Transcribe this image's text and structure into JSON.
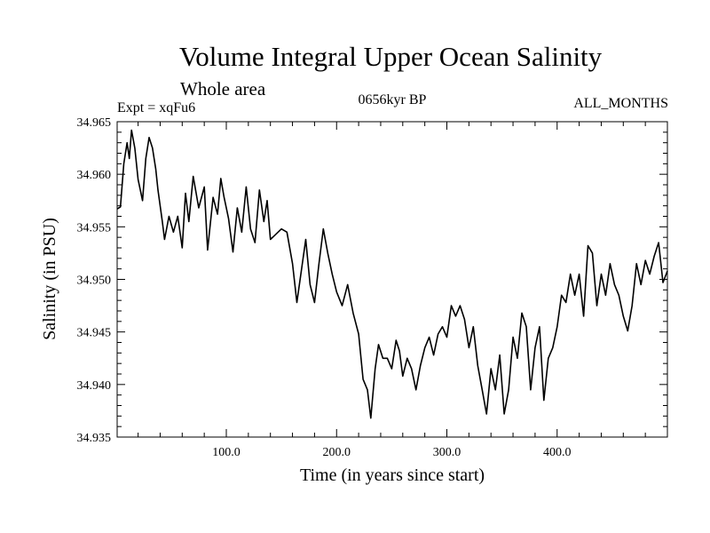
{
  "chart_data": {
    "type": "line",
    "title": "Volume Integral Upper Ocean Salinity",
    "subtitle": "Whole area",
    "experiment": "Expt = xqFu6",
    "period": "0656kyr BP",
    "months": "ALL_MONTHS",
    "xlabel": "Time (in years since start)",
    "ylabel": "Salinity (in PSU)",
    "xlim": [
      1,
      500
    ],
    "ylim": [
      34.935,
      34.965
    ],
    "xticks": [
      100,
      200,
      300,
      400
    ],
    "xtick_labels": [
      "100.0",
      "200.0",
      "300.0",
      "400.0"
    ],
    "yticks": [
      34.935,
      34.94,
      34.945,
      34.95,
      34.955,
      34.96,
      34.965
    ],
    "ytick_labels": [
      "34.935",
      "34.940",
      "34.945",
      "34.950",
      "34.955",
      "34.960",
      "34.965"
    ],
    "series": [
      {
        "name": "Salinity",
        "x": [
          1,
          4,
          7,
          10,
          12,
          14,
          17,
          20,
          24,
          27,
          30,
          33,
          36,
          38,
          42,
          44,
          48,
          52,
          56,
          60,
          63,
          66,
          70,
          75,
          80,
          83,
          88,
          92,
          95,
          98,
          102,
          106,
          110,
          114,
          118,
          122,
          126,
          130,
          134,
          137,
          140,
          144,
          150,
          155,
          160,
          164,
          168,
          172,
          176,
          180,
          184,
          188,
          192,
          196,
          200,
          205,
          210,
          215,
          220,
          224,
          228,
          231,
          235,
          238,
          242,
          246,
          250,
          254,
          257,
          260,
          264,
          268,
          272,
          276,
          280,
          284,
          288,
          292,
          296,
          300,
          304,
          308,
          312,
          316,
          320,
          324,
          328,
          332,
          336,
          340,
          344,
          348,
          352,
          356,
          360,
          364,
          368,
          372,
          376,
          380,
          384,
          388,
          392,
          396,
          400,
          404,
          408,
          412,
          416,
          420,
          424,
          428,
          432,
          436,
          440,
          444,
          448,
          452,
          456,
          460,
          464,
          468,
          472,
          476,
          480,
          484,
          488,
          492,
          496,
          500
        ],
        "values": [
          34.9567,
          34.9569,
          34.961,
          34.963,
          34.9615,
          34.9642,
          34.9625,
          34.9595,
          34.9575,
          34.9615,
          34.9635,
          34.9625,
          34.9605,
          34.9585,
          34.9555,
          34.9538,
          34.956,
          34.9545,
          34.956,
          34.953,
          34.9582,
          34.9555,
          34.9598,
          34.9568,
          34.9588,
          34.9528,
          34.9578,
          34.9562,
          34.9596,
          34.9578,
          34.9558,
          34.9526,
          34.9568,
          34.9545,
          34.9588,
          34.9548,
          34.9535,
          34.9585,
          34.9555,
          34.9575,
          34.9538,
          34.9542,
          34.9548,
          34.9545,
          34.9515,
          34.9478,
          34.9508,
          34.9538,
          34.9495,
          34.9478,
          34.9515,
          34.9548,
          34.9525,
          34.9505,
          34.9488,
          34.9475,
          34.9495,
          34.9468,
          34.9448,
          34.9405,
          34.9395,
          34.9368,
          34.9415,
          34.9438,
          34.9425,
          34.9425,
          34.9415,
          34.9442,
          34.9432,
          34.9408,
          34.9425,
          34.9415,
          34.9395,
          34.9418,
          34.9435,
          34.9445,
          34.9428,
          34.9448,
          34.9455,
          34.9445,
          34.9475,
          34.9465,
          34.9475,
          34.9462,
          34.9435,
          34.9455,
          34.9418,
          34.9395,
          34.9372,
          34.9415,
          34.9395,
          34.9428,
          34.9372,
          34.9395,
          34.9445,
          34.9425,
          34.9468,
          34.9455,
          34.9395,
          34.9435,
          34.9455,
          34.9385,
          34.9425,
          34.9435,
          34.9455,
          34.9485,
          34.9478,
          34.9505,
          34.9485,
          34.9505,
          34.9465,
          34.9532,
          34.9525,
          34.9475,
          34.9505,
          34.9485,
          34.9515,
          34.9495,
          34.9485,
          34.9465,
          34.9451,
          34.9475,
          34.9515,
          34.9495,
          34.9518,
          34.9505,
          34.9522,
          34.9535,
          34.9497,
          34.9508
        ]
      }
    ]
  }
}
